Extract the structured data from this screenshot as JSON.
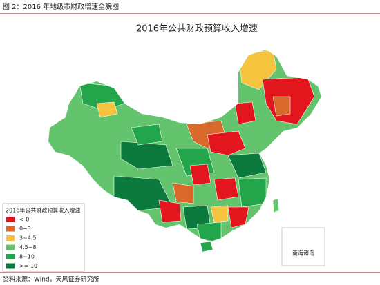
{
  "header": {
    "title": "图 2：2016 年地级市财政增速全貌图"
  },
  "map": {
    "title": "2016年公共财政预算收入增速",
    "legend": {
      "title": "2016年公共财政预算收入增速",
      "items": [
        {
          "label": "< 0",
          "color": "#e3151d"
        },
        {
          "label": "0~3",
          "color": "#d8692a"
        },
        {
          "label": "3~4.5",
          "color": "#f6c33f"
        },
        {
          "label": "4.5~8",
          "color": "#63c46d"
        },
        {
          "label": "8~10",
          "color": "#22a54b"
        },
        {
          "label": ">= 10",
          "color": "#0c7a3c"
        }
      ]
    },
    "inset_label": "南海诸岛"
  },
  "footer": {
    "source": "资料来源：Wind，天风证券研究所"
  }
}
